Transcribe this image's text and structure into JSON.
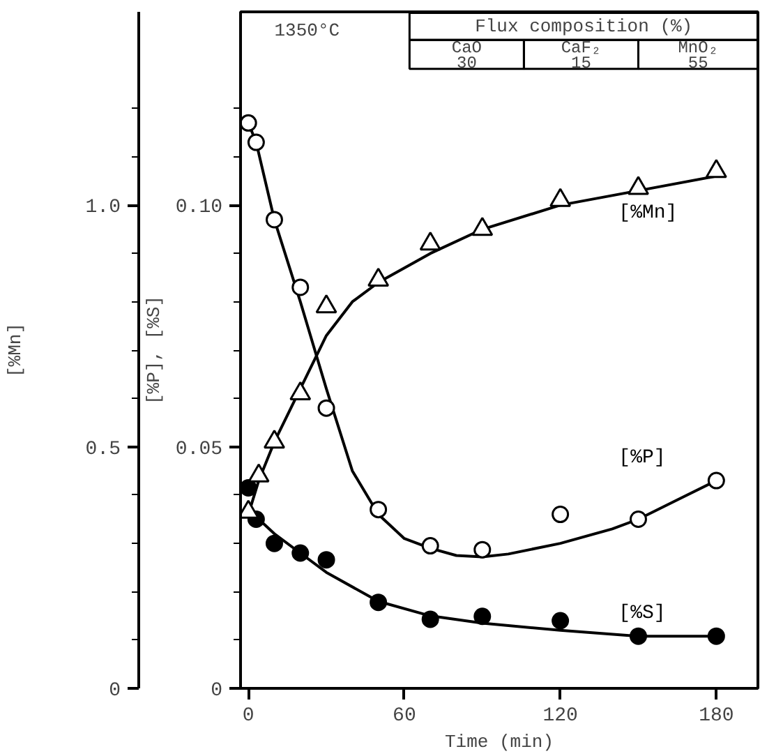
{
  "chart_data": {
    "type": "scatter",
    "xlabel": "Time (min)",
    "ylabel": "[%P], [%S]",
    "y2label": "[%Mn]",
    "xlim": [
      -3,
      196
    ],
    "xticks": [
      0,
      60,
      120,
      180
    ],
    "ylim": [
      0,
      0.14
    ],
    "yticks": [
      0,
      {
        "value": 0.01,
        "label": null
      },
      {
        "value": 0.02,
        "label": null
      },
      {
        "value": 0.03,
        "label": null
      },
      {
        "value": 0.04,
        "label": null
      },
      {
        "value": 0.05,
        "label": "0.05"
      },
      {
        "value": 0.06,
        "label": null
      },
      {
        "value": 0.07,
        "label": null
      },
      {
        "value": 0.08,
        "label": null
      },
      {
        "value": 0.09,
        "label": null
      },
      {
        "value": 0.1,
        "label": "0.10"
      },
      {
        "value": 0.11,
        "label": null
      },
      {
        "value": 0.12,
        "label": null
      }
    ],
    "y2lim": [
      0,
      1.4
    ],
    "y2ticks": [
      0,
      {
        "value": 0.1,
        "label": null
      },
      {
        "value": 0.2,
        "label": null
      },
      {
        "value": 0.3,
        "label": null
      },
      {
        "value": 0.4,
        "label": null
      },
      {
        "value": 0.5,
        "label": "0.5"
      },
      {
        "value": 0.6,
        "label": null
      },
      {
        "value": 0.7,
        "label": null
      },
      {
        "value": 0.8,
        "label": null
      },
      {
        "value": 0.9,
        "label": null
      },
      {
        "value": 1.0,
        "label": "1.0"
      },
      {
        "value": 1.1,
        "label": null
      },
      {
        "value": 1.2,
        "label": null
      }
    ],
    "grid": false,
    "legend": false,
    "annotations": [
      "1350°C",
      "Flux composition (%)",
      "CaO",
      "CaF₂",
      "MnO₂",
      "30",
      "15",
      "55"
    ],
    "series": [
      {
        "name": "[%P]",
        "marker": "circle",
        "color": "#ffffff",
        "x": [
          0,
          3,
          10,
          20,
          30,
          50,
          70,
          90,
          120,
          150,
          180
        ],
        "values": [
          0.117,
          0.113,
          0.097,
          0.083,
          0.058,
          0.037,
          0.0295,
          0.0287,
          0.036,
          0.035,
          0.043
        ]
      },
      {
        "name": "[%S]",
        "marker": "circle",
        "color": "#000000",
        "x": [
          0,
          3,
          10,
          20,
          30,
          50,
          70,
          90,
          120,
          150,
          180
        ],
        "values": [
          0.0415,
          0.035,
          0.03,
          0.028,
          0.0266,
          0.0178,
          0.0143,
          0.0149,
          0.014,
          0.0108,
          0.0108
        ]
      },
      {
        "name": "[%Mn]",
        "marker": "triangle",
        "axis": "y2",
        "color": "#ffffff",
        "x": [
          0,
          4,
          10,
          20,
          30,
          50,
          70,
          90,
          120,
          150,
          180
        ],
        "values": [
          0.365,
          0.44,
          0.51,
          0.61,
          0.79,
          0.845,
          0.92,
          0.95,
          1.01,
          1.035,
          1.07
        ]
      },
      {
        "type": "line",
        "color": "#000000",
        "x": [
          0,
          3,
          10,
          20,
          30,
          40,
          50,
          60,
          70,
          80,
          90,
          100,
          120,
          140,
          150,
          165,
          180
        ],
        "values": [
          0.117,
          0.113,
          0.097,
          0.08,
          0.062,
          0.045,
          0.036,
          0.031,
          0.029,
          0.0275,
          0.0272,
          0.0278,
          0.03,
          0.033,
          0.035,
          0.039,
          0.043
        ]
      },
      {
        "type": "line",
        "color": "#000000",
        "x": [
          0,
          10,
          20,
          30,
          50,
          70,
          90,
          120,
          150,
          180
        ],
        "values": [
          0.037,
          0.032,
          0.028,
          0.024,
          0.018,
          0.015,
          0.0135,
          0.012,
          0.0108,
          0.0108
        ]
      },
      {
        "type": "line",
        "axis": "y2",
        "color": "#000000",
        "x": [
          0,
          4,
          10,
          20,
          30,
          40,
          50,
          70,
          90,
          120,
          150,
          180
        ],
        "values": [
          0.36,
          0.43,
          0.51,
          0.62,
          0.73,
          0.8,
          0.84,
          0.9,
          0.95,
          1.0,
          1.03,
          1.06
        ]
      }
    ]
  }
}
